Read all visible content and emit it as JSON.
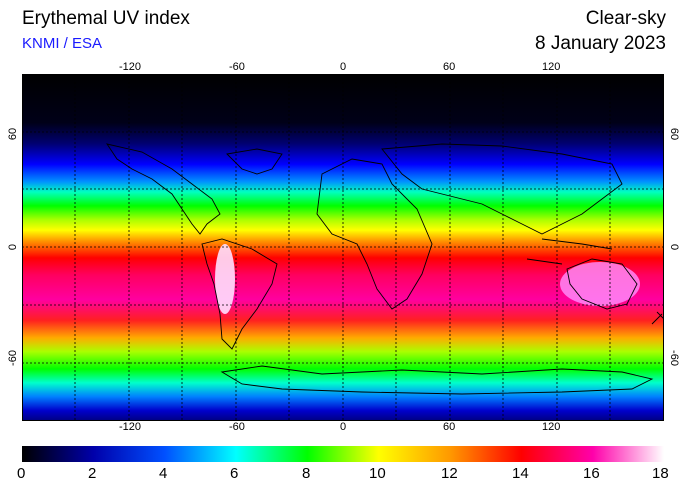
{
  "header": {
    "title": "Erythemal UV index",
    "subtitle": "KNMI / ESA",
    "condition": "Clear-sky",
    "date": "8 January 2023"
  },
  "map": {
    "lon_ticks": [
      "-120",
      "-60",
      "0",
      "60",
      "120"
    ],
    "lat_ticks": [
      "60",
      "0",
      "-60"
    ],
    "lon_range": [
      -180,
      180
    ],
    "lat_range": [
      -90,
      90
    ],
    "grid": "dashed 30-degree graticule",
    "projection": "equirectangular"
  },
  "colorbar": {
    "labels": [
      "0",
      "2",
      "4",
      "6",
      "8",
      "10",
      "12",
      "14",
      "16",
      "18"
    ],
    "range": [
      0,
      18
    ],
    "colors": [
      "#000000",
      "#0000aa",
      "#0050ff",
      "#00ffff",
      "#00ff00",
      "#ffff00",
      "#ff9900",
      "#ff0000",
      "#ff00aa",
      "#ffffff"
    ]
  }
}
